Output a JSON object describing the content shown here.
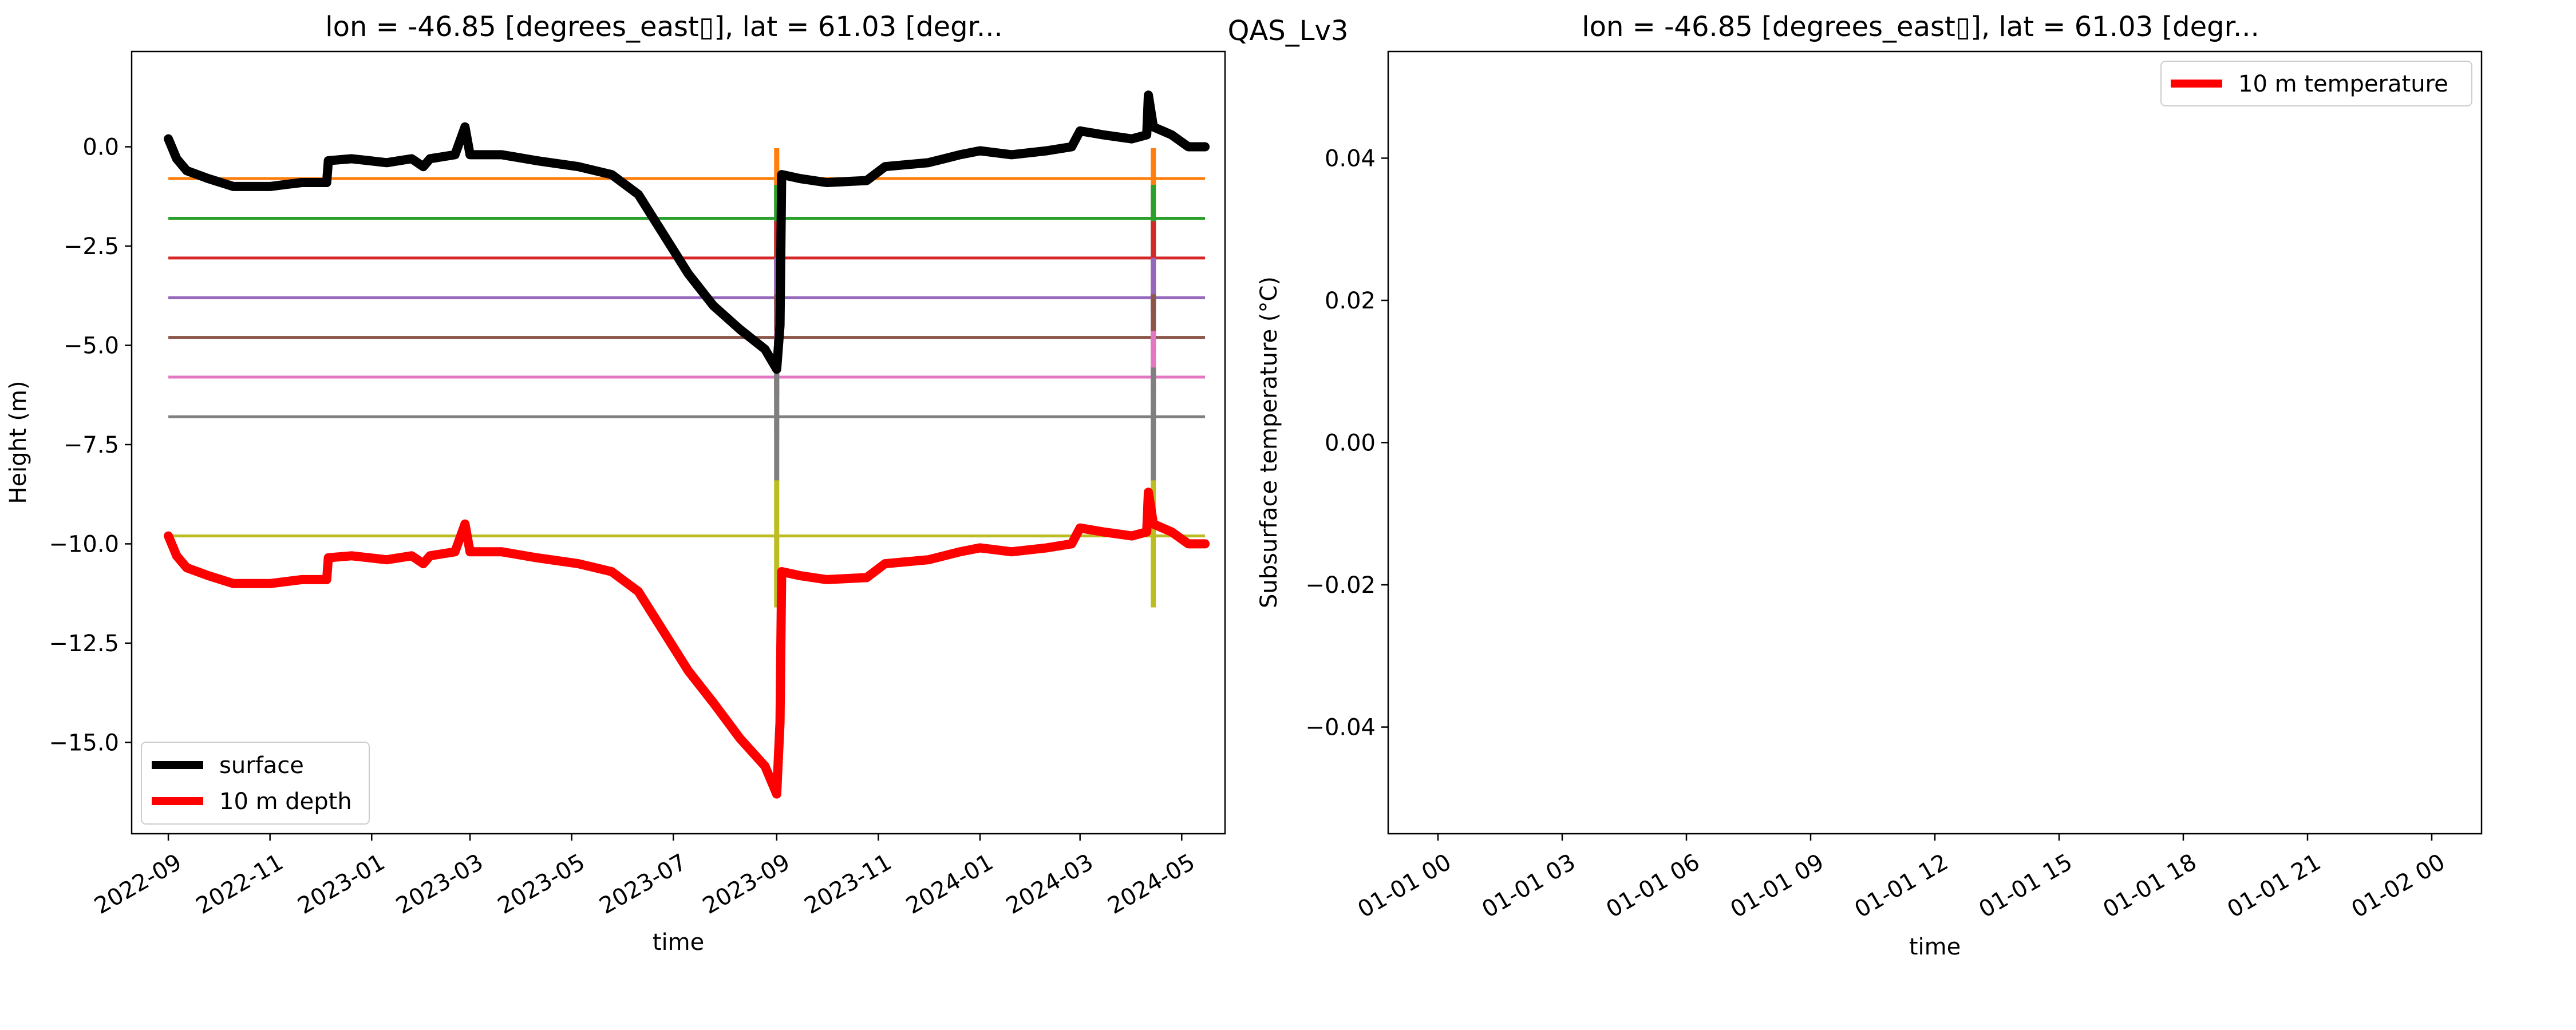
{
  "suptitle": "QAS_Lv3",
  "chart_data": [
    {
      "type": "line",
      "title": "lon = -46.85 [degrees_east▯], lat = 61.03 [degr...",
      "xlabel": "time",
      "ylabel": "Height (m)",
      "x_axis_kind": "date",
      "xlim": [
        "2022-08-10",
        "2024-05-27"
      ],
      "ylim": [
        -17.3,
        2.4
      ],
      "xticks": [
        "2022-09",
        "2022-11",
        "2023-01",
        "2023-03",
        "2023-05",
        "2023-07",
        "2023-09",
        "2023-11",
        "2024-01",
        "2024-03",
        "2024-05"
      ],
      "yticks": [
        0.0,
        -2.5,
        -5.0,
        -7.5,
        -10.0,
        -12.5,
        -15.0
      ],
      "ytick_labels": [
        "0.0",
        "−2.5",
        "−5.0",
        "−7.5",
        "−10.0",
        "−12.5",
        "−15.0"
      ],
      "legend": {
        "loc": "lower left",
        "entries": [
          {
            "name": "surface",
            "color": "#000000"
          },
          {
            "name": "10 m depth",
            "color": "#ff0000"
          }
        ]
      },
      "series": [
        {
          "name": "surface",
          "color": "#000000",
          "width": "thick",
          "points": [
            [
              "2022-09-01",
              0.2
            ],
            [
              "2022-09-06",
              -0.3
            ],
            [
              "2022-09-12",
              -0.6
            ],
            [
              "2022-09-25",
              -0.8
            ],
            [
              "2022-10-10",
              -1.0
            ],
            [
              "2022-11-01",
              -1.0
            ],
            [
              "2022-11-20",
              -0.9
            ],
            [
              "2022-12-05",
              -0.9
            ],
            [
              "2022-12-06",
              -0.35
            ],
            [
              "2022-12-20",
              -0.3
            ],
            [
              "2023-01-10",
              -0.4
            ],
            [
              "2023-01-25",
              -0.3
            ],
            [
              "2023-02-01",
              -0.5
            ],
            [
              "2023-02-05",
              -0.3
            ],
            [
              "2023-02-20",
              -0.2
            ],
            [
              "2023-02-26",
              0.5
            ],
            [
              "2023-03-01",
              -0.2
            ],
            [
              "2023-03-20",
              -0.2
            ],
            [
              "2023-04-10",
              -0.35
            ],
            [
              "2023-05-05",
              -0.5
            ],
            [
              "2023-05-25",
              -0.7
            ],
            [
              "2023-06-10",
              -1.2
            ],
            [
              "2023-06-25",
              -2.2
            ],
            [
              "2023-07-10",
              -3.2
            ],
            [
              "2023-07-25",
              -4.0
            ],
            [
              "2023-08-10",
              -4.6
            ],
            [
              "2023-08-25",
              -5.1
            ],
            [
              "2023-09-01",
              -5.6
            ],
            [
              "2023-09-03",
              -4.5
            ],
            [
              "2023-09-04",
              -0.7
            ],
            [
              "2023-09-15",
              -0.8
            ],
            [
              "2023-10-01",
              -0.9
            ],
            [
              "2023-10-25",
              -0.85
            ],
            [
              "2023-11-05",
              -0.5
            ],
            [
              "2023-12-01",
              -0.4
            ],
            [
              "2023-12-20",
              -0.2
            ],
            [
              "2024-01-01",
              -0.1
            ],
            [
              "2024-01-20",
              -0.2
            ],
            [
              "2024-02-10",
              -0.1
            ],
            [
              "2024-02-25",
              0.0
            ],
            [
              "2024-03-01",
              0.4
            ],
            [
              "2024-03-15",
              0.3
            ],
            [
              "2024-04-01",
              0.2
            ],
            [
              "2024-04-10",
              0.3
            ],
            [
              "2024-04-11",
              1.3
            ],
            [
              "2024-04-14",
              0.5
            ],
            [
              "2024-04-25",
              0.3
            ],
            [
              "2024-05-05",
              0.0
            ],
            [
              "2024-05-15",
              0.0
            ]
          ]
        },
        {
          "name": "10 m depth",
          "color": "#ff0000",
          "width": "thick",
          "points": [
            [
              "2022-09-01",
              -9.8
            ],
            [
              "2022-09-06",
              -10.3
            ],
            [
              "2022-09-12",
              -10.6
            ],
            [
              "2022-09-25",
              -10.8
            ],
            [
              "2022-10-10",
              -11.0
            ],
            [
              "2022-11-01",
              -11.0
            ],
            [
              "2022-11-20",
              -10.9
            ],
            [
              "2022-12-05",
              -10.9
            ],
            [
              "2022-12-06",
              -10.35
            ],
            [
              "2022-12-20",
              -10.3
            ],
            [
              "2023-01-10",
              -10.4
            ],
            [
              "2023-01-25",
              -10.3
            ],
            [
              "2023-02-01",
              -10.5
            ],
            [
              "2023-02-05",
              -10.3
            ],
            [
              "2023-02-20",
              -10.2
            ],
            [
              "2023-02-26",
              -9.5
            ],
            [
              "2023-03-01",
              -10.2
            ],
            [
              "2023-03-20",
              -10.2
            ],
            [
              "2023-04-10",
              -10.35
            ],
            [
              "2023-05-05",
              -10.5
            ],
            [
              "2023-05-25",
              -10.7
            ],
            [
              "2023-06-10",
              -11.2
            ],
            [
              "2023-06-25",
              -12.2
            ],
            [
              "2023-07-10",
              -13.2
            ],
            [
              "2023-07-25",
              -14.0
            ],
            [
              "2023-08-10",
              -14.9
            ],
            [
              "2023-08-25",
              -15.6
            ],
            [
              "2023-09-01",
              -16.3
            ],
            [
              "2023-09-03",
              -14.5
            ],
            [
              "2023-09-04",
              -10.7
            ],
            [
              "2023-09-15",
              -10.8
            ],
            [
              "2023-10-01",
              -10.9
            ],
            [
              "2023-10-25",
              -10.85
            ],
            [
              "2023-11-05",
              -10.5
            ],
            [
              "2023-12-01",
              -10.4
            ],
            [
              "2023-12-20",
              -10.2
            ],
            [
              "2024-01-01",
              -10.1
            ],
            [
              "2024-01-20",
              -10.2
            ],
            [
              "2024-02-10",
              -10.1
            ],
            [
              "2024-02-25",
              -10.0
            ],
            [
              "2024-03-01",
              -9.6
            ],
            [
              "2024-03-15",
              -9.7
            ],
            [
              "2024-04-01",
              -9.8
            ],
            [
              "2024-04-10",
              -9.7
            ],
            [
              "2024-04-11",
              -8.7
            ],
            [
              "2024-04-14",
              -9.5
            ],
            [
              "2024-04-25",
              -9.7
            ],
            [
              "2024-05-05",
              -10.0
            ],
            [
              "2024-05-15",
              -10.0
            ]
          ]
        },
        {
          "color": "#ff7f0e",
          "level": -0.8
        },
        {
          "color": "#2ca02c",
          "level": -1.8
        },
        {
          "color": "#d62728",
          "level": -2.8
        },
        {
          "color": "#9467bd",
          "level": -3.8
        },
        {
          "color": "#8c564b",
          "level": -4.8
        },
        {
          "color": "#e377c2",
          "level": -5.8
        },
        {
          "color": "#7f7f7f",
          "level": -6.8
        },
        {
          "color": "#bcbd22",
          "level": -9.8
        }
      ],
      "level_series_span": [
        "2022-09-01",
        "2024-05-15"
      ],
      "level_series_spikes": [
        "2023-09-01",
        "2024-04-14"
      ]
    },
    {
      "type": "line",
      "title": "lon = -46.85 [degrees_east▯], lat = 61.03 [degr...",
      "xlabel": "time",
      "ylabel": "Subsurface temperature (°C)",
      "x_axis_kind": "datetime",
      "ylim": [
        -0.055,
        0.055
      ],
      "yticks": [
        0.04,
        0.02,
        0.0,
        -0.02,
        -0.04
      ],
      "ytick_labels": [
        "0.04",
        "0.02",
        "0.00",
        "−0.02",
        "−0.04"
      ],
      "xticks": [
        "01-01 00",
        "01-01 03",
        "01-01 06",
        "01-01 09",
        "01-01 12",
        "01-01 15",
        "01-01 18",
        "01-01 21",
        "01-02 00"
      ],
      "legend": {
        "loc": "upper right",
        "entries": [
          {
            "name": "10 m temperature",
            "color": "#ff0000"
          }
        ]
      },
      "series": [
        {
          "name": "10 m temperature",
          "color": "#ff0000",
          "points": []
        }
      ]
    }
  ]
}
